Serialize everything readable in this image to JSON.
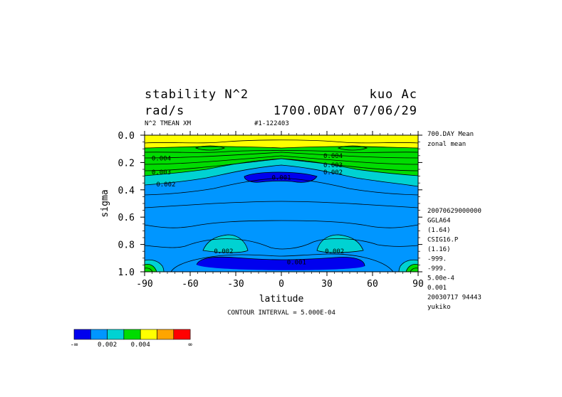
{
  "header": {
    "title_left": "stability N^2",
    "title_right": "kuo Ac",
    "units": "rad/s",
    "time_label": "1700.0DAY 07/06/29",
    "var_label": "N^2 TMEAN XM",
    "id_label": "#1-122403"
  },
  "side_info": {
    "top_lines": [
      "700.DAY Mean",
      "zonal mean"
    ],
    "lines": [
      "20070629000000",
      "GGLA64",
      "(1.64)",
      "CSIG16.P",
      "(1.16)",
      "-999.",
      "-999.",
      "5.00e-4",
      "0.001",
      "20030717  94443",
      "yukiko"
    ]
  },
  "footer": {
    "contour_interval": "CONTOUR INTERVAL = 5.000E-04"
  },
  "colorbar": {
    "colors": [
      "#0000ee",
      "#0096ff",
      "#00d2d2",
      "#00dc00",
      "#ffff00",
      "#ffa500",
      "#ff0000"
    ],
    "labels": [
      "-∞",
      "0.002",
      "0.004",
      "∞"
    ]
  },
  "chart_data": {
    "type": "contour",
    "xlabel": "latitude",
    "ylabel": "sigma",
    "xlim": [
      -90,
      90
    ],
    "ylim": [
      1.0,
      0.0
    ],
    "xticks": [
      "-90",
      "-60",
      "-30",
      "0",
      "30",
      "60",
      "90"
    ],
    "yticks": [
      "0.0",
      "0.2",
      "0.4",
      "0.6",
      "0.8",
      "1.0"
    ],
    "contour_interval": 0.0005,
    "colors": {
      "deep_blue": "#0000ee",
      "light_blue": "#0096ff",
      "cyan": "#00d2d2",
      "green": "#00dc00",
      "yellow": "#ffff00",
      "orange": "#ffa500",
      "red": "#ff0000"
    },
    "labels": [
      {
        "text": "0.004",
        "lat": -79,
        "sigma": 0.17
      },
      {
        "text": "0.003",
        "lat": -79,
        "sigma": 0.27
      },
      {
        "text": "0.002",
        "lat": -76,
        "sigma": 0.36
      },
      {
        "text": "0.001",
        "lat": 0,
        "sigma": 0.31
      },
      {
        "text": "0.004",
        "lat": 34,
        "sigma": 0.15
      },
      {
        "text": "0.003",
        "lat": 34,
        "sigma": 0.22
      },
      {
        "text": "0.002",
        "lat": 34,
        "sigma": 0.27
      },
      {
        "text": "0.002",
        "lat": -38,
        "sigma": 0.85
      },
      {
        "text": "0.002",
        "lat": 35,
        "sigma": 0.85
      },
      {
        "text": "0.001",
        "lat": 10,
        "sigma": 0.93
      }
    ]
  }
}
